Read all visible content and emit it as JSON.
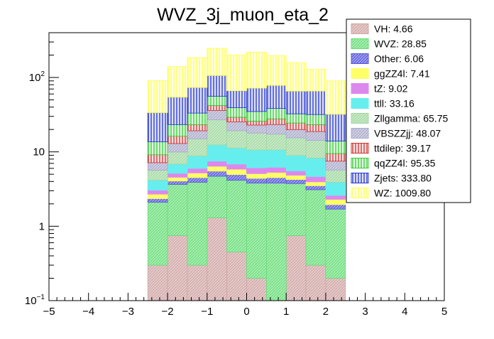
{
  "chart_data": {
    "type": "bar",
    "stacked": true,
    "title": "WVZ_3j_muon_eta_2",
    "xlabel": "",
    "ylabel": "",
    "yscale": "log",
    "xlim": [
      -5,
      5
    ],
    "ylim": [
      0.1,
      400
    ],
    "x_ticks": [
      "−5",
      "−4",
      "−3",
      "−2",
      "−1",
      "0",
      "1",
      "2",
      "3",
      "4",
      "5"
    ],
    "bin_edges": [
      -2.5,
      -2.0,
      -1.5,
      -1.0,
      -0.5,
      0.0,
      0.5,
      1.0,
      1.5,
      2.0,
      2.5
    ],
    "legend_position": "top-right",
    "series": [
      {
        "name": "VH: 4.66",
        "color": "#d0a4a4",
        "hatch": "diag",
        "values": [
          0.3,
          0.75,
          0.3,
          1.3,
          0.45,
          0.2,
          0.1,
          0.75,
          0.3,
          0.2
        ]
      },
      {
        "name": "WVZ: 28.85",
        "color": "#66dd77",
        "hatch": "diag",
        "values": [
          1.8,
          2.9,
          3.6,
          3.4,
          3.7,
          3.6,
          3.7,
          3.0,
          2.8,
          1.5
        ]
      },
      {
        "name": "Other: 6.06",
        "color": "#5555dd",
        "hatch": "diag",
        "values": [
          0.25,
          0.4,
          0.6,
          0.8,
          0.8,
          0.6,
          0.7,
          0.5,
          0.4,
          0.25
        ]
      },
      {
        "name": "ggZZ4l: 7.41",
        "color": "#ffff66",
        "hatch": "none",
        "values": [
          0.35,
          0.5,
          0.7,
          0.9,
          0.9,
          0.7,
          0.8,
          0.6,
          0.45,
          0.35
        ]
      },
      {
        "name": "tZ: 9.02",
        "color": "#dd88ee",
        "hatch": "none",
        "values": [
          0.35,
          0.6,
          0.8,
          1.1,
          1.0,
          1.0,
          0.9,
          0.7,
          0.7,
          0.3
        ]
      },
      {
        "name": "ttll: 33.16",
        "color": "#66eeee",
        "hatch": "none",
        "values": [
          1.1,
          1.7,
          2.8,
          4.9,
          4.4,
          4.5,
          4.4,
          3.4,
          3.6,
          1.3
        ]
      },
      {
        "name": "Zllgamma: 65.75",
        "color": "#a0d8a0",
        "hatch": "diag",
        "values": [
          1.5,
          3.1,
          6.2,
          14.6,
          8.0,
          7.3,
          6.7,
          6.5,
          6.0,
          1.8
        ]
      },
      {
        "name": "VBSZZjj: 48.07",
        "color": "#aaaacc",
        "hatch": "diag",
        "values": [
          1.5,
          3.0,
          4.2,
          9.0,
          6.0,
          5.0,
          6.0,
          4.5,
          4.5,
          1.8
        ]
      },
      {
        "name": "ttdilep: 39.17",
        "color": "#cc3333",
        "hatch": "vert",
        "values": [
          2.0,
          3.3,
          4.0,
          6.0,
          4.0,
          3.0,
          4.5,
          4.5,
          4.5,
          2.0
        ]
      },
      {
        "name": "qqZZ4l: 95.35",
        "color": "#33cc33",
        "hatch": "vert",
        "values": [
          4.5,
          7.0,
          10.0,
          14.0,
          10.0,
          9.0,
          10.5,
          8.0,
          8.5,
          4.5
        ]
      },
      {
        "name": "Zjets: 333.80",
        "color": "#2233cc",
        "hatch": "vert",
        "values": [
          20.0,
          31.0,
          40.0,
          50.0,
          27.0,
          37.0,
          40.0,
          33.0,
          34.0,
          18.0
        ]
      },
      {
        "name": "WZ: 1009.80",
        "color": "#ffff55",
        "hatch": "vert",
        "values": [
          57.0,
          86.0,
          112.0,
          140.0,
          135.0,
          147.0,
          119.0,
          93.0,
          63.0,
          58.0
        ]
      }
    ]
  }
}
